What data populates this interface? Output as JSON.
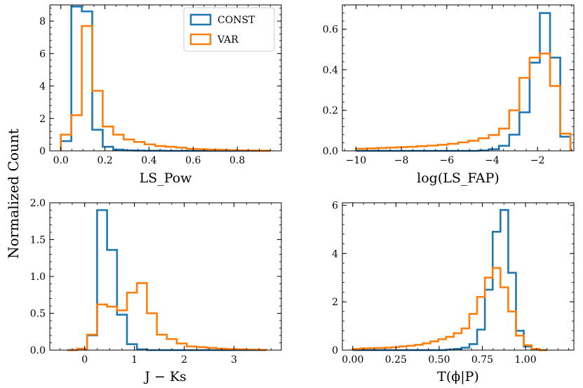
{
  "figure": {
    "ylabel": "Normalized Count",
    "legend": {
      "placement": "top-right of first panel",
      "entries": [
        "CONST",
        "VAR"
      ]
    },
    "colors": {
      "CONST": "#1f77b4",
      "VAR": "#ff7f0e"
    }
  },
  "chart_data": [
    {
      "type": "bar",
      "histogram": true,
      "xlabel": "LS_Pow",
      "xlim": [
        -0.05,
        1.0
      ],
      "ylim": [
        0,
        9.0
      ],
      "xticks": [
        0.0,
        0.2,
        0.4,
        0.6,
        0.8
      ],
      "xtick_labels": [
        "0.0",
        "0.2",
        "0.4",
        "0.6",
        "0.8"
      ],
      "yticks": [
        0,
        2,
        4,
        6,
        8
      ],
      "ytick_labels": [
        "0",
        "2",
        "4",
        "6",
        "8"
      ],
      "series": [
        {
          "name": "CONST",
          "edges": [
            0.0,
            0.0475,
            0.095,
            0.1425,
            0.19,
            0.2375,
            0.285,
            0.3325,
            0.38,
            0.4275,
            0.475,
            0.5225,
            0.57,
            0.6175,
            0.665,
            0.7125,
            0.76,
            0.8075,
            0.855,
            0.9025,
            0.95
          ],
          "values": [
            0.6,
            8.9,
            8.6,
            1.3,
            0.25,
            0.08,
            0.03,
            0.02,
            0.01,
            0.01,
            0.0,
            0.0,
            0.0,
            0.0,
            0.0,
            0.0,
            0.0,
            0.0,
            0.0,
            0.0
          ]
        },
        {
          "name": "VAR",
          "edges": [
            0.0,
            0.0475,
            0.095,
            0.1425,
            0.19,
            0.2375,
            0.285,
            0.3325,
            0.38,
            0.4275,
            0.475,
            0.5225,
            0.57,
            0.6175,
            0.665,
            0.7125,
            0.76,
            0.8075,
            0.855,
            0.9025,
            0.95
          ],
          "values": [
            1.0,
            2.2,
            7.7,
            3.7,
            1.5,
            1.0,
            0.7,
            0.55,
            0.4,
            0.3,
            0.25,
            0.2,
            0.12,
            0.1,
            0.08,
            0.06,
            0.04,
            0.03,
            0.02,
            0.01
          ]
        }
      ]
    },
    {
      "type": "bar",
      "histogram": true,
      "xlabel": "log(LS_FAP)",
      "xlim": [
        -10.6,
        -0.4
      ],
      "ylim": [
        0,
        0.72
      ],
      "xticks": [
        -10,
        -8,
        -6,
        -4,
        -2
      ],
      "xtick_labels": [
        "−10",
        "−8",
        "−6",
        "−4",
        "−2"
      ],
      "yticks": [
        0.0,
        0.2,
        0.4,
        0.6
      ],
      "ytick_labels": [
        "0.0",
        "0.2",
        "0.4",
        "0.6"
      ],
      "series": [
        {
          "name": "CONST",
          "edges": [
            -10.0,
            -9.55,
            -9.1,
            -8.65,
            -8.2,
            -7.75,
            -7.3,
            -6.85,
            -6.4,
            -5.95,
            -5.5,
            -5.05,
            -4.6,
            -4.15,
            -3.7,
            -3.25,
            -2.8,
            -2.35,
            -1.9,
            -1.45,
            -1.0,
            -0.55
          ],
          "values": [
            0.0,
            0.0,
            0.0,
            0.0,
            0.0,
            0.0,
            0.0,
            0.0,
            0.0,
            0.0,
            0.0,
            0.0,
            0.002,
            0.008,
            0.025,
            0.08,
            0.19,
            0.435,
            0.68,
            0.46,
            0.07
          ]
        },
        {
          "name": "VAR",
          "edges": [
            -10.0,
            -9.55,
            -9.1,
            -8.65,
            -8.2,
            -7.75,
            -7.3,
            -6.85,
            -6.4,
            -5.95,
            -5.5,
            -5.05,
            -4.6,
            -4.15,
            -3.7,
            -3.25,
            -2.8,
            -2.35,
            -1.9,
            -1.45,
            -1.0,
            -0.55
          ],
          "values": [
            0.01,
            0.012,
            0.014,
            0.016,
            0.018,
            0.02,
            0.023,
            0.026,
            0.03,
            0.035,
            0.042,
            0.05,
            0.062,
            0.078,
            0.11,
            0.2,
            0.36,
            0.46,
            0.48,
            0.32,
            0.085
          ]
        }
      ]
    },
    {
      "type": "bar",
      "histogram": true,
      "xlabel": "J − Ks",
      "xlim": [
        -0.7,
        3.95
      ],
      "ylim": [
        0,
        2.0
      ],
      "xticks": [
        0,
        1,
        2,
        3
      ],
      "xtick_labels": [
        "0",
        "1",
        "2",
        "3"
      ],
      "yticks": [
        0.0,
        0.5,
        1.0,
        1.5,
        2.0
      ],
      "ytick_labels": [
        "0.0",
        "0.5",
        "1.0",
        "1.5",
        "2.0"
      ],
      "series": [
        {
          "name": "CONST",
          "edges": [
            -0.35,
            -0.15,
            0.05,
            0.25,
            0.45,
            0.65,
            0.85,
            1.05,
            1.25,
            1.45,
            1.65,
            1.85,
            2.05,
            2.25,
            2.45,
            2.65,
            2.85,
            3.05,
            3.25,
            3.45,
            3.65
          ],
          "values": [
            0.0,
            0.01,
            0.2,
            1.9,
            1.36,
            0.48,
            0.08,
            0.01,
            0.0,
            0.0,
            0.0,
            0.0,
            0.0,
            0.0,
            0.0,
            0.0,
            0.0,
            0.0,
            0.0,
            0.0
          ]
        },
        {
          "name": "VAR",
          "edges": [
            -0.35,
            -0.15,
            0.05,
            0.25,
            0.45,
            0.65,
            0.85,
            1.05,
            1.25,
            1.45,
            1.65,
            1.85,
            2.05,
            2.25,
            2.45,
            2.65,
            2.85,
            3.05,
            3.25,
            3.45,
            3.65
          ],
          "values": [
            0.0,
            0.02,
            0.21,
            0.62,
            0.59,
            0.54,
            0.78,
            0.91,
            0.5,
            0.21,
            0.15,
            0.09,
            0.05,
            0.04,
            0.03,
            0.02,
            0.015,
            0.01,
            0.005,
            0.003
          ]
        }
      ]
    },
    {
      "type": "bar",
      "histogram": true,
      "xlabel": "T(ϕ|P)",
      "xlim": [
        -0.06,
        1.28
      ],
      "ylim": [
        0,
        6.1
      ],
      "xticks": [
        0.0,
        0.25,
        0.5,
        0.75,
        1.0
      ],
      "xtick_labels": [
        "0.00",
        "0.25",
        "0.50",
        "0.75",
        "1.00"
      ],
      "yticks": [
        0,
        2,
        4,
        6
      ],
      "ytick_labels": [
        "0",
        "2",
        "4",
        "6"
      ],
      "series": [
        {
          "name": "CONST",
          "edges": [
            0.0,
            0.045,
            0.09,
            0.135,
            0.18,
            0.225,
            0.27,
            0.315,
            0.36,
            0.405,
            0.45,
            0.495,
            0.54,
            0.585,
            0.63,
            0.675,
            0.72,
            0.765,
            0.81,
            0.855,
            0.9,
            0.945,
            0.99,
            1.035,
            1.08,
            1.125
          ],
          "values": [
            0.0,
            0.0,
            0.0,
            0.0,
            0.0,
            0.0,
            0.0,
            0.0,
            0.0,
            0.0,
            0.0,
            0.0,
            0.02,
            0.05,
            0.1,
            0.25,
            0.85,
            2.5,
            4.9,
            5.8,
            3.2,
            0.8,
            0.15,
            0.02,
            0.0
          ]
        },
        {
          "name": "VAR",
          "edges": [
            0.0,
            0.045,
            0.09,
            0.135,
            0.18,
            0.225,
            0.27,
            0.315,
            0.36,
            0.405,
            0.45,
            0.495,
            0.54,
            0.585,
            0.63,
            0.675,
            0.72,
            0.765,
            0.81,
            0.855,
            0.9,
            0.945,
            0.99,
            1.035,
            1.08,
            1.125
          ],
          "values": [
            0.05,
            0.07,
            0.08,
            0.09,
            0.1,
            0.12,
            0.15,
            0.18,
            0.22,
            0.28,
            0.36,
            0.45,
            0.55,
            0.7,
            0.9,
            1.5,
            2.2,
            3.0,
            3.4,
            2.6,
            1.6,
            0.6,
            0.2,
            0.05,
            0.0
          ]
        }
      ]
    }
  ]
}
